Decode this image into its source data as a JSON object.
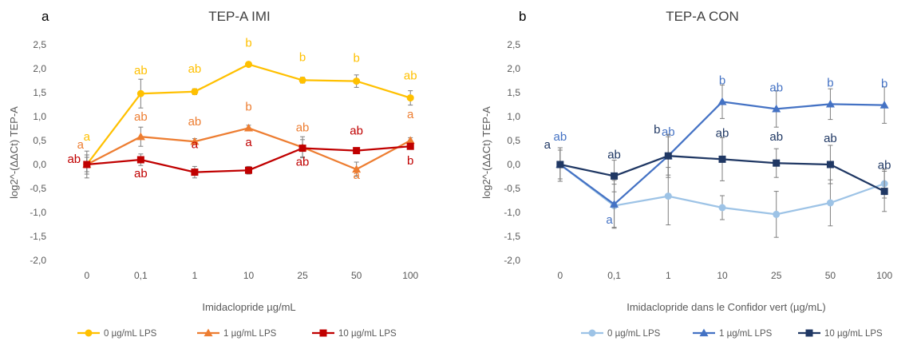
{
  "chart_data": [
    {
      "panel_letter": "a",
      "type": "line",
      "title": "TEP-A IMI",
      "xlabel": "Imidaclopride µg/mL",
      "ylabel": "log2^-(ΔΔCt) TEP-A",
      "categories": [
        "0",
        "0,1",
        "1",
        "10",
        "25",
        "50",
        "100"
      ],
      "ylim": [
        -2.0,
        2.5
      ],
      "yticks": [
        "2,5",
        "2,0",
        "1,5",
        "1,0",
        "0,5",
        "0,0",
        "-0,5",
        "-1,0",
        "-1,5",
        "-2,0"
      ],
      "grid": false,
      "legend_position": "bottom",
      "series": [
        {
          "name": "0 µg/mL LPS",
          "color": "#FFC000",
          "marker": "circle",
          "values": [
            0.0,
            1.48,
            1.52,
            2.09,
            1.76,
            1.74,
            1.39
          ],
          "errors": [
            0.15,
            0.3,
            0.06,
            0.04,
            0.06,
            0.13,
            0.15
          ],
          "labels": [
            "a",
            "ab",
            "ab",
            "b",
            "b",
            "b",
            "ab"
          ]
        },
        {
          "name": "1 µg/mL LPS",
          "color": "#ED7D31",
          "marker": "triangle",
          "values": [
            0.0,
            0.58,
            0.48,
            0.76,
            0.36,
            -0.1,
            0.5
          ],
          "errors": [
            0.2,
            0.2,
            0.06,
            0.06,
            0.22,
            0.15,
            0.06
          ],
          "labels": [
            "a",
            "ab",
            "ab",
            "b",
            "ab",
            "a",
            "a"
          ]
        },
        {
          "name": "10 µg/mL LPS",
          "color": "#C00000",
          "marker": "square",
          "values": [
            0.0,
            0.1,
            -0.16,
            -0.12,
            0.34,
            0.29,
            0.38
          ],
          "errors": [
            0.28,
            0.12,
            0.12,
            0.08,
            0.18,
            0.06,
            0.05
          ],
          "labels": [
            "ab",
            "ab",
            "a",
            "a",
            "ab",
            "ab",
            "b"
          ]
        }
      ]
    },
    {
      "panel_letter": "b",
      "type": "line",
      "title": "TEP-A CON",
      "xlabel": "Imidaclopride dans le Confidor vert (µg/mL)",
      "ylabel": "log2^-(ΔΔCt) TEP-A",
      "categories": [
        "0",
        "0,1",
        "1",
        "10",
        "25",
        "50",
        "100"
      ],
      "ylim": [
        -2.0,
        2.5
      ],
      "yticks": [
        "2,5",
        "2,0",
        "1,5",
        "1,0",
        "0,5",
        "0,0",
        "-0,5",
        "-1,0",
        "-1,5",
        "-2,0"
      ],
      "grid": false,
      "legend_position": "bottom",
      "series": [
        {
          "name": "0 µg/mL LPS",
          "color": "#9DC3E6",
          "marker": "circle",
          "values": [
            0.0,
            -0.86,
            -0.66,
            -0.9,
            -1.04,
            -0.8,
            -0.4
          ],
          "errors": [
            0.3,
            0.45,
            0.6,
            0.25,
            0.48,
            0.48,
            0.3
          ],
          "labels": []
        },
        {
          "name": "1 µg/mL LPS",
          "color": "#4472C4",
          "marker": "triangle",
          "values": [
            0.0,
            -0.83,
            0.18,
            1.31,
            1.16,
            1.26,
            1.24
          ],
          "errors": [
            0.35,
            0.5,
            0.4,
            0.35,
            0.38,
            0.32,
            0.38
          ],
          "labels": [
            "ab",
            "a",
            "ab",
            "b",
            "ab",
            "b",
            "b"
          ]
        },
        {
          "name": "10 µg/mL LPS",
          "color": "#203864",
          "marker": "square",
          "values": [
            0.0,
            -0.24,
            0.18,
            0.11,
            0.03,
            0.0,
            -0.56
          ],
          "errors": [
            0.35,
            0.33,
            0.45,
            0.45,
            0.3,
            0.4,
            0.42
          ],
          "labels": [
            "a",
            "ab",
            "b",
            "ab",
            "ab",
            "ab",
            "ab"
          ]
        }
      ]
    }
  ]
}
